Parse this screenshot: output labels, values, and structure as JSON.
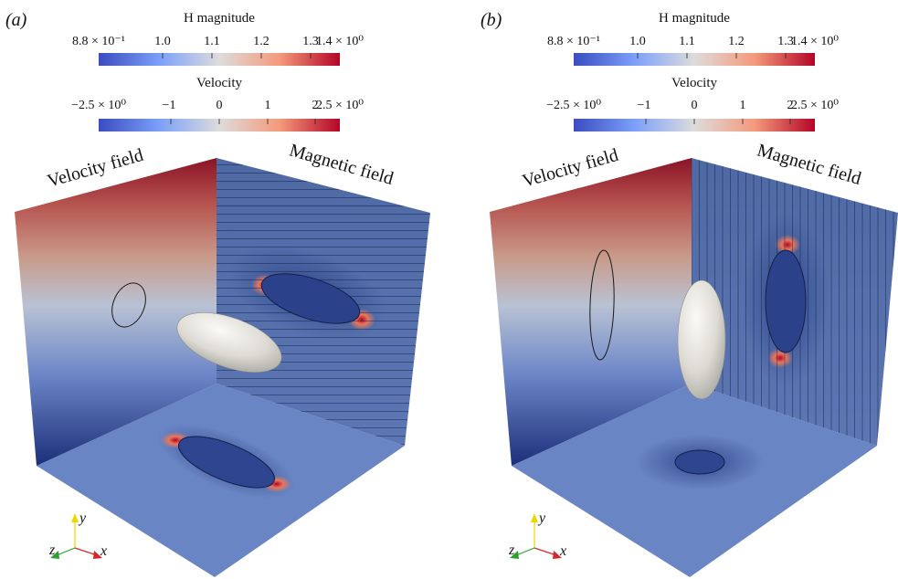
{
  "panels": [
    {
      "label": "(a)",
      "colorbar_h": {
        "title": "H magnitude",
        "ticks": [
          "8.8 × 10⁻¹",
          "1.0",
          "1.1",
          "1.2",
          "1.3",
          "1.4 × 10⁰"
        ]
      },
      "colorbar_v": {
        "title": "Velocity",
        "ticks": [
          "−2.5 × 10⁰",
          "−1",
          "0",
          "1",
          "2",
          "2.5 × 10⁰"
        ]
      },
      "wall_left_label": "Velocity field",
      "wall_right_label": "Magnetic field",
      "axes": {
        "x": "x",
        "y": "y",
        "z": "z"
      },
      "orientation": "tilted"
    },
    {
      "label": "(b)",
      "colorbar_h": {
        "title": "H magnitude",
        "ticks": [
          "8.8 × 10⁻¹",
          "1.0",
          "1.1",
          "1.2",
          "1.3",
          "1.4 × 10⁰"
        ]
      },
      "colorbar_v": {
        "title": "Velocity",
        "ticks": [
          "−2.5 × 10⁰",
          "−1",
          "0",
          "1",
          "2",
          "2.5 × 10⁰"
        ]
      },
      "wall_left_label": "Velocity field",
      "wall_right_label": "Magnetic field",
      "axes": {
        "x": "x",
        "y": "y",
        "z": "z"
      },
      "orientation": "vertical"
    }
  ],
  "colors": {
    "diverging_low": "#3b4cc0",
    "diverging_mid": "#dddddd",
    "diverging_high": "#b40426",
    "field_blue": "#6b86c4",
    "x_axis": "#d62728",
    "y_axis": "#e8d800",
    "z_axis": "#2ca02c"
  }
}
